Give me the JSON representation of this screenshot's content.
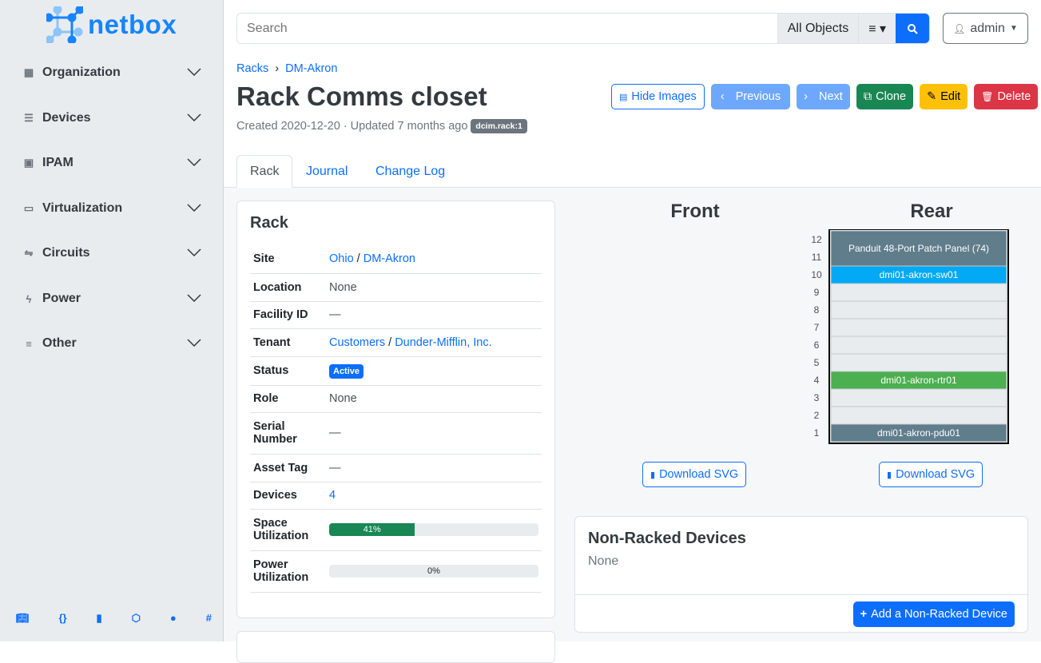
{
  "brand": "netbox",
  "sidebar": {
    "items": [
      {
        "label": "Organization",
        "icon": "building-icon"
      },
      {
        "label": "Devices",
        "icon": "server-icon"
      },
      {
        "label": "IPAM",
        "icon": "ip-icon"
      },
      {
        "label": "Virtualization",
        "icon": "monitor-icon"
      },
      {
        "label": "Circuits",
        "icon": "circuit-icon"
      },
      {
        "label": "Power",
        "icon": "lightning-icon"
      },
      {
        "label": "Other",
        "icon": "lines-icon"
      }
    ],
    "footer_icons": [
      "book-icon",
      "api-icon",
      "bookmark-icon",
      "graphql-icon",
      "github-icon",
      "slack-icon"
    ]
  },
  "search": {
    "placeholder": "Search",
    "scope": "All Objects"
  },
  "user": {
    "name": "admin"
  },
  "breadcrumb": [
    "Racks",
    "DM-Akron"
  ],
  "page": {
    "title": "Rack Comms closet",
    "created": "Created 2020-12-20 · Updated 7 months ago",
    "tag": "dcim.rack:1"
  },
  "actions": {
    "hide_images": "Hide Images",
    "previous": "Previous",
    "next": "Next",
    "clone": "Clone",
    "edit": "Edit",
    "delete": "Delete"
  },
  "tabs": [
    "Rack",
    "Journal",
    "Change Log"
  ],
  "rack_card": {
    "title": "Rack",
    "rows": {
      "site_label": "Site",
      "site_region": "Ohio",
      "site_sep": "/",
      "site": "DM-Akron",
      "location_label": "Location",
      "location": "None",
      "facility_label": "Facility ID",
      "facility": "—",
      "tenant_label": "Tenant",
      "tenant_group": "Customers",
      "tenant_sep": "/",
      "tenant": "Dunder-Mifflin, Inc.",
      "status_label": "Status",
      "status": "Active",
      "role_label": "Role",
      "role": "None",
      "serial_label": "Serial Number",
      "serial": "—",
      "asset_label": "Asset Tag",
      "asset": "—",
      "devices_label": "Devices",
      "devices": "4",
      "space_label": "Space Utilization",
      "space": "41%",
      "space_value": 41,
      "power_label": "Power Utilization",
      "power": "0%",
      "power_value": 0
    }
  },
  "elevation": {
    "front_title": "Front",
    "rear_title": "Rear",
    "units": [
      "12",
      "11",
      "10",
      "9",
      "8",
      "7",
      "6",
      "5",
      "4",
      "3",
      "2",
      "1"
    ],
    "front_devices": [
      {
        "name": "Panduit 48-Port Patch Panel (74)",
        "top_unit": 12,
        "height": 2,
        "color": "#607d8b"
      },
      {
        "name": "dmi01-akron-sw01",
        "top_unit": 10,
        "height": 1,
        "color": "#03a9f4"
      },
      {
        "name": "dmi01-akron-rtr01",
        "top_unit": 4,
        "height": 1,
        "color": "#4caf50"
      },
      {
        "name": "dmi01-akron-pdu01",
        "top_unit": 1,
        "height": 1,
        "color": "#607d8b"
      }
    ],
    "rear_devices": [
      {
        "name": "dmi01-akron-sw01",
        "top_unit": 10,
        "height": 1,
        "occupied_from_front": true
      }
    ],
    "download": "Download SVG"
  },
  "non_racked": {
    "title": "Non-Racked Devices",
    "value": "None",
    "add": "Add a Non-Racked Device"
  }
}
